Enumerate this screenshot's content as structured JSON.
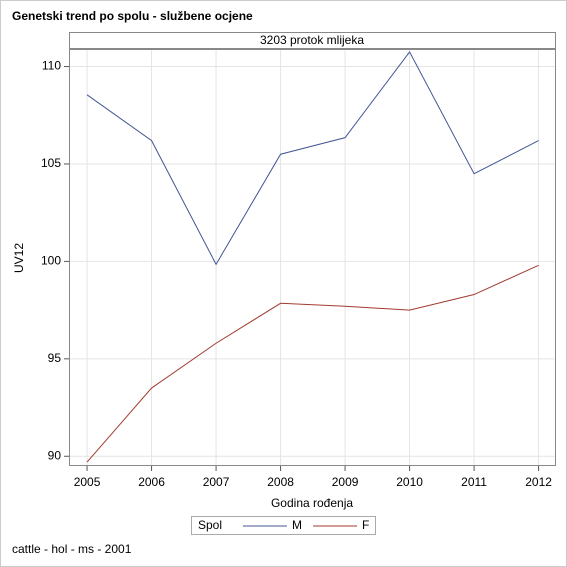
{
  "chart_data": {
    "type": "line",
    "title": "Genetski trend po spolu - službene ocjene",
    "panel_title": "3203 protok mlijeka",
    "x_label": "Godina rođenja",
    "y_label": "UV12",
    "legend_title": "Spol",
    "footnote": "cattle - hol - ms - 2001",
    "x": [
      2005,
      2006,
      2007,
      2008,
      2009,
      2010,
      2011,
      2012
    ],
    "series": [
      {
        "name": "M",
        "color": "#445694",
        "values": [
          108.55,
          106.2,
          99.85,
          105.5,
          106.35,
          110.75,
          104.5,
          106.2
        ]
      },
      {
        "name": "F",
        "color": "#a23a2e",
        "values": [
          89.7,
          93.5,
          95.8,
          97.85,
          97.7,
          97.5,
          98.3,
          99.8
        ]
      }
    ],
    "xlim": [
      2004.72,
      2012.27
    ],
    "xticks": [
      2005,
      2006,
      2007,
      2008,
      2009,
      2010,
      2011,
      2012
    ],
    "ylim": [
      89.5,
      110.9
    ],
    "yticks": [
      90,
      95,
      100,
      105,
      110
    ],
    "grid": true
  }
}
